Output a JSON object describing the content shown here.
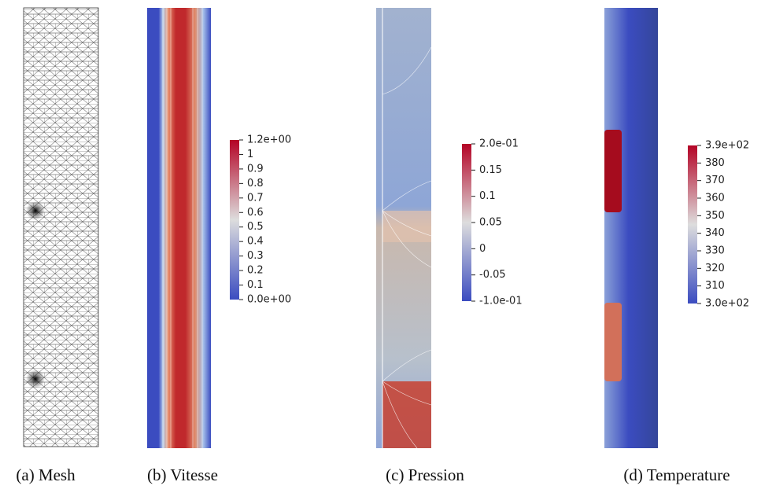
{
  "panels": [
    {
      "caption": "(a) Mesh"
    },
    {
      "caption": "(b) Vitesse",
      "colorbar": [
        "1.2e+00",
        "1",
        "0.9",
        "0.8",
        "0.7",
        "0.6",
        "0.5",
        "0.4",
        "0.3",
        "0.2",
        "0.1",
        "0.0e+00"
      ]
    },
    {
      "caption": "(c) Pression",
      "colorbar": [
        "2.0e-01",
        "0.15",
        "0.1",
        "0.05",
        "0",
        "-0.05",
        "-1.0e-01"
      ]
    },
    {
      "caption": "(d) Temperature",
      "colorbar": [
        "3.9e+02",
        "380",
        "370",
        "360",
        "350",
        "340",
        "330",
        "320",
        "310",
        "3.0e+02"
      ]
    }
  ]
}
